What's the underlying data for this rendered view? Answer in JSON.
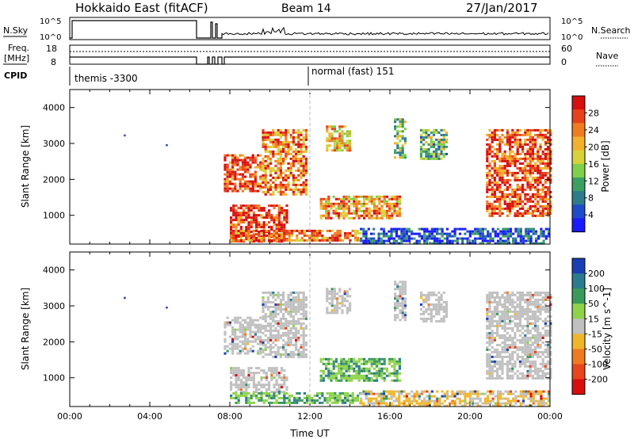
{
  "header": {
    "title": "Hokkaido East (fitACF)",
    "beam": "Beam 14",
    "date": "27/Jan/2017"
  },
  "panels": {
    "nsky": {
      "label": "N.Sky",
      "ticks": [
        "10^5",
        "10^0"
      ],
      "right_ticks": [
        "10^5",
        "10^0"
      ],
      "right_label": "N.Search"
    },
    "freq": {
      "label_line1": "Freq.",
      "label_line2": "[MHz]",
      "ticks": [
        "18",
        "8"
      ],
      "right_ticks": [
        "60",
        "0"
      ],
      "right_label": "Nave"
    },
    "cpid": {
      "label": "CPID",
      "segments": [
        "themis -3300",
        "normal (fast) 151"
      ]
    }
  },
  "colors": {
    "white": "#ffffff",
    "black": "#000000",
    "ground_scatter": "#c0c0c0"
  },
  "chart_data": [
    {
      "type": "heatmap",
      "name": "power",
      "xlabel": "",
      "ylabel": "Slant Range [km]",
      "x_range_hours": [
        0,
        24
      ],
      "ylim": [
        200,
        4500
      ],
      "y_ticks": [
        "1000",
        "2000",
        "3000",
        "4000"
      ],
      "colorbar": {
        "label": "Power [dB]",
        "ticks": [
          "4",
          "8",
          "12",
          "16",
          "20",
          "24",
          "28"
        ],
        "colors": [
          "#1a1aff",
          "#1f4bc8",
          "#2e7b8c",
          "#3b9f62",
          "#7fcf4a",
          "#d7d23a",
          "#f2b12a",
          "#f07c20",
          "#e8421a",
          "#d60f0f"
        ]
      },
      "regions": [
        {
          "t0": 7.7,
          "t1": 9.5,
          "r0": 1700,
          "r1": 2700,
          "level": 0.85
        },
        {
          "t0": 8.0,
          "t1": 10.8,
          "r0": 250,
          "r1": 1300,
          "level": 0.9
        },
        {
          "t0": 9.6,
          "t1": 11.8,
          "r0": 1600,
          "r1": 3400,
          "level": 0.75
        },
        {
          "t0": 12.8,
          "t1": 14.0,
          "r0": 2800,
          "r1": 3500,
          "level": 0.65
        },
        {
          "t0": 12.5,
          "t1": 16.5,
          "r0": 900,
          "r1": 1550,
          "level": 0.7
        },
        {
          "t0": 8.0,
          "t1": 14.5,
          "r0": 300,
          "r1": 600,
          "level": 0.8
        },
        {
          "t0": 16.2,
          "t1": 16.8,
          "r0": 2600,
          "r1": 3700,
          "level": 0.45
        },
        {
          "t0": 17.5,
          "t1": 18.8,
          "r0": 2600,
          "r1": 3400,
          "level": 0.4
        },
        {
          "t0": 20.8,
          "t1": 24.0,
          "r0": 1000,
          "r1": 3400,
          "level": 0.85
        },
        {
          "t0": 14.5,
          "t1": 24.0,
          "r0": 250,
          "r1": 650,
          "level": 0.15
        }
      ]
    },
    {
      "type": "heatmap",
      "name": "velocity",
      "xlabel": "Time UT",
      "ylabel": "Slant Range [km]",
      "x_range_hours": [
        0,
        24
      ],
      "ylim": [
        200,
        4500
      ],
      "x_ticks": [
        "00:00",
        "04:00",
        "08:00",
        "12:00",
        "16:00",
        "20:00",
        "00:00"
      ],
      "y_ticks": [
        "1000",
        "2000",
        "3000",
        "4000"
      ],
      "colorbar": {
        "label": "Velocity [m s^-1]",
        "ticks": [
          "200",
          "100",
          "50",
          "15",
          "-15",
          "-50",
          "-100",
          "-200"
        ],
        "colors": [
          "#1a3fb4",
          "#2a7b8e",
          "#3a9a5a",
          "#8fd34a",
          "#c0c0c0",
          "#f0b62a",
          "#f07a20",
          "#e8451a",
          "#d80e0e"
        ]
      },
      "regions": [
        {
          "t0": 7.7,
          "t1": 9.5,
          "r0": 1700,
          "r1": 2700,
          "cls": "gs"
        },
        {
          "t0": 8.0,
          "t1": 10.8,
          "r0": 600,
          "r1": 1300,
          "cls": "gs"
        },
        {
          "t0": 9.6,
          "t1": 11.8,
          "r0": 1600,
          "r1": 3400,
          "cls": "gs"
        },
        {
          "t0": 12.8,
          "t1": 14.0,
          "r0": 2800,
          "r1": 3500,
          "cls": "gs"
        },
        {
          "t0": 12.5,
          "t1": 16.5,
          "r0": 900,
          "r1": 1550,
          "cls": "pos"
        },
        {
          "t0": 8.0,
          "t1": 14.5,
          "r0": 300,
          "r1": 600,
          "cls": "pos"
        },
        {
          "t0": 16.2,
          "t1": 16.8,
          "r0": 2600,
          "r1": 3700,
          "cls": "gs"
        },
        {
          "t0": 17.5,
          "t1": 18.8,
          "r0": 2600,
          "r1": 3400,
          "cls": "gs"
        },
        {
          "t0": 20.8,
          "t1": 24.0,
          "r0": 1000,
          "r1": 3400,
          "cls": "gs"
        },
        {
          "t0": 14.5,
          "t1": 24.0,
          "r0": 250,
          "r1": 650,
          "cls": "neg"
        }
      ]
    }
  ]
}
